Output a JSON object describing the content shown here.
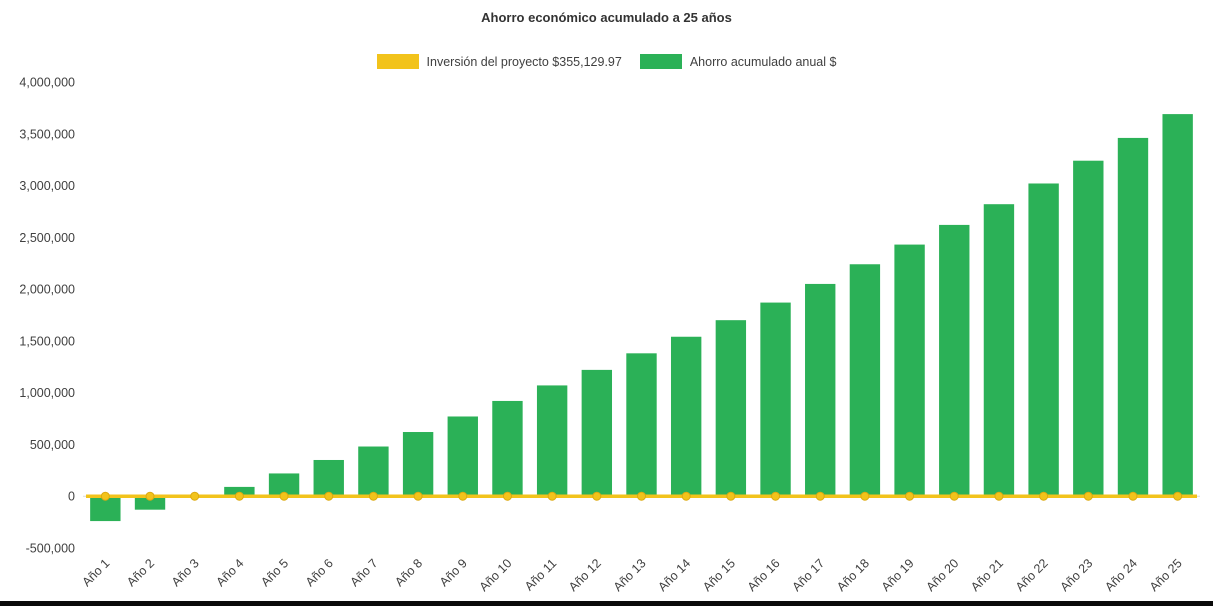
{
  "chart_data": {
    "type": "bar",
    "title": "Ahorro económico acumulado a 25 años",
    "xlabel": "",
    "ylabel": "",
    "ylim": [
      -500000,
      4000000
    ],
    "grid": false,
    "legend_position": "top",
    "categories": [
      "Año 1",
      "Año 2",
      "Año 3",
      "Año 4",
      "Año 5",
      "Año 6",
      "Año 7",
      "Año 8",
      "Año 9",
      "Año 10",
      "Año 11",
      "Año 12",
      "Año 13",
      "Año 14",
      "Año 15",
      "Año 16",
      "Año 17",
      "Año 18",
      "Año 19",
      "Año 20",
      "Año 21",
      "Año 22",
      "Año 23",
      "Año 24",
      "Año 25"
    ],
    "yticks": [
      {
        "value": -500000,
        "label": "-500,000"
      },
      {
        "value": 0,
        "label": "0"
      },
      {
        "value": 500000,
        "label": "500,000"
      },
      {
        "value": 1000000,
        "label": "1,000,000"
      },
      {
        "value": 1500000,
        "label": "1,500,000"
      },
      {
        "value": 2000000,
        "label": "2,000,000"
      },
      {
        "value": 2500000,
        "label": "2,500,000"
      },
      {
        "value": 3000000,
        "label": "3,000,000"
      },
      {
        "value": 3500000,
        "label": "3,500,000"
      },
      {
        "value": 4000000,
        "label": "4,000,000"
      }
    ],
    "series": [
      {
        "name": "Inversión del proyecto $355,129.97",
        "type": "line",
        "color": "#F2C31B",
        "marker_stroke": "#DCA910",
        "values": [
          0,
          0,
          0,
          0,
          0,
          0,
          0,
          0,
          0,
          0,
          0,
          0,
          0,
          0,
          0,
          0,
          0,
          0,
          0,
          0,
          0,
          0,
          0,
          0,
          0
        ]
      },
      {
        "name": "Ahorro acumulado anual $",
        "type": "bar",
        "color": "#2BB157",
        "values": [
          -240000,
          -130000,
          -10000,
          90000,
          220000,
          350000,
          480000,
          620000,
          770000,
          920000,
          1070000,
          1220000,
          1380000,
          1540000,
          1700000,
          1870000,
          2050000,
          2240000,
          2430000,
          2620000,
          2820000,
          3020000,
          3240000,
          3460000,
          3690000
        ]
      }
    ]
  },
  "colors": {
    "background": "#FFFFFF",
    "text": "#404040",
    "axis_line": "#D9D9D9",
    "bottom_edge": "#0A0A0A"
  }
}
